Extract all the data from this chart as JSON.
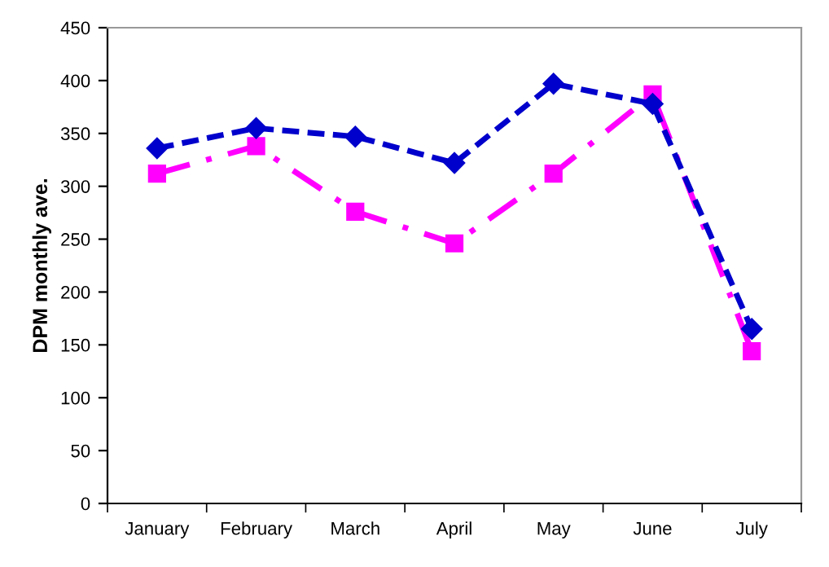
{
  "chart_data": {
    "type": "line",
    "ylabel": "DPM monthly ave.",
    "categories": [
      "January",
      "February",
      "March",
      "April",
      "May",
      "June",
      "July"
    ],
    "series": [
      {
        "color": "#0000cc",
        "marker": "diamond",
        "line_style": "dashed",
        "values": [
          336,
          355,
          347,
          322,
          397,
          378,
          165
        ]
      },
      {
        "color": "#ff00ff",
        "marker": "square",
        "line_style": "dashdot",
        "values": [
          312,
          338,
          276,
          246,
          312,
          387,
          144
        ]
      }
    ],
    "ylim": [
      0,
      450
    ],
    "yticks": [
      0,
      50,
      100,
      150,
      200,
      250,
      300,
      350,
      400,
      450
    ],
    "grid": false,
    "legend": false
  }
}
